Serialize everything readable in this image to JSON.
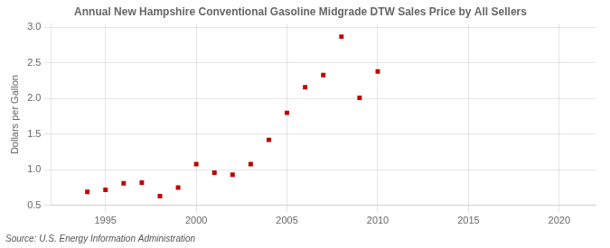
{
  "chart_data": {
    "type": "scatter",
    "title": "Annual New Hampshire Conventional Gasoline Midgrade DTW Sales Price by All Sellers",
    "ylabel": "Dollars per Gallon",
    "source": "Source: U.S. Energy Information Administration",
    "x": [
      1994,
      1995,
      1996,
      1997,
      1998,
      1999,
      2000,
      2001,
      2002,
      2003,
      2004,
      2005,
      2006,
      2007,
      2008,
      2009,
      2010
    ],
    "values": [
      0.69,
      0.72,
      0.81,
      0.82,
      0.63,
      0.75,
      1.08,
      0.96,
      0.93,
      1.08,
      1.42,
      1.8,
      2.16,
      2.33,
      2.87,
      2.01,
      2.38
    ],
    "color": "#c00000",
    "marker": "square",
    "xlim": [
      1992,
      2022
    ],
    "xticks": [
      1995,
      2000,
      2005,
      2010,
      2015,
      2020
    ],
    "ylim": [
      0.5,
      3.05
    ],
    "yticks": [
      0.5,
      {
        "value": 1.0,
        "label": "1.0"
      },
      1.5,
      {
        "value": 2.0,
        "label": "2.0"
      },
      2.5,
      {
        "value": 3.0,
        "label": "3.0"
      }
    ],
    "grid": true
  }
}
